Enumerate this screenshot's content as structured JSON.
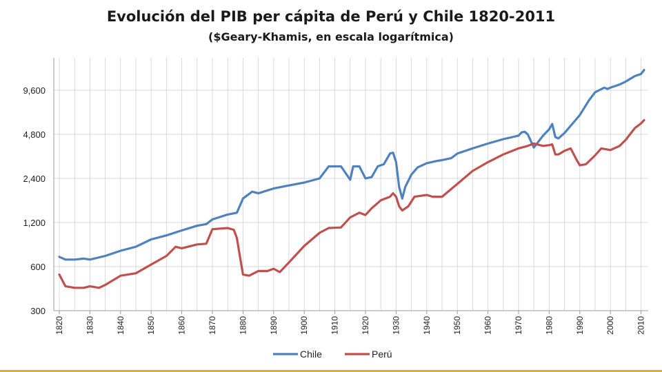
{
  "chart_data": {
    "type": "line",
    "title": "Evolución del PIB per cápita de Perú y Chile 1820-2011",
    "subtitle": "($Geary-Khamis, en escala logarítmica)",
    "xlabel": "",
    "ylabel": "",
    "y_scale": "log",
    "ylim": [
      300,
      15000
    ],
    "xlim": [
      1820,
      2011
    ],
    "y_ticks": [
      300,
      600,
      1200,
      2400,
      4800,
      9600
    ],
    "y_tick_labels": [
      "300",
      "600",
      "1,200",
      "2,400",
      "4,800",
      "9,600"
    ],
    "x_ticks": [
      1820,
      1830,
      1840,
      1850,
      1860,
      1870,
      1880,
      1890,
      1900,
      1910,
      1920,
      1930,
      1940,
      1950,
      1960,
      1970,
      1980,
      1990,
      2000,
      2010
    ],
    "x_tick_labels": [
      "1820",
      "1830",
      "1840",
      "1850",
      "1860",
      "1870",
      "1880",
      "1890",
      "1900",
      "1910",
      "1920",
      "1930",
      "1940",
      "1950",
      "1960",
      "1970",
      "1980",
      "1990",
      "2000",
      "2010"
    ],
    "grid": true,
    "legend_position": "bottom",
    "series": [
      {
        "name": "Chile",
        "color": "#4f81bd",
        "x": [
          1820,
          1822,
          1825,
          1828,
          1830,
          1835,
          1840,
          1845,
          1850,
          1855,
          1860,
          1865,
          1868,
          1870,
          1875,
          1878,
          1880,
          1883,
          1885,
          1890,
          1895,
          1900,
          1905,
          1908,
          1912,
          1915,
          1916,
          1918,
          1920,
          1922,
          1924,
          1926,
          1928,
          1929,
          1930,
          1931,
          1932,
          1933,
          1935,
          1937,
          1940,
          1943,
          1945,
          1948,
          1950,
          1955,
          1960,
          1965,
          1970,
          1971,
          1972,
          1973,
          1975,
          1978,
          1980,
          1981,
          1982,
          1983,
          1985,
          1988,
          1990,
          1993,
          1995,
          1998,
          1999,
          2000,
          2003,
          2005,
          2008,
          2009,
          2010,
          2011
        ],
        "y": [
          700,
          670,
          670,
          680,
          670,
          710,
          770,
          820,
          920,
          980,
          1060,
          1140,
          1170,
          1260,
          1360,
          1400,
          1750,
          1950,
          1900,
          2050,
          2150,
          2250,
          2400,
          2900,
          2900,
          2350,
          2900,
          2900,
          2400,
          2450,
          2900,
          3000,
          3550,
          3600,
          3100,
          2100,
          1750,
          2100,
          2550,
          2850,
          3050,
          3150,
          3200,
          3300,
          3550,
          3850,
          4150,
          4450,
          4700,
          4950,
          5000,
          4800,
          3900,
          4700,
          5200,
          5650,
          4600,
          4500,
          4900,
          5800,
          6500,
          8200,
          9300,
          10000,
          9800,
          10000,
          10500,
          11000,
          12000,
          12200,
          12400,
          13200
        ]
      },
      {
        "name": "Perú",
        "color": "#c0504d",
        "x": [
          1820,
          1822,
          1825,
          1828,
          1830,
          1833,
          1835,
          1840,
          1845,
          1850,
          1855,
          1858,
          1860,
          1865,
          1868,
          1870,
          1875,
          1877,
          1878,
          1879,
          1880,
          1882,
          1885,
          1888,
          1890,
          1892,
          1895,
          1900,
          1905,
          1908,
          1912,
          1915,
          1918,
          1920,
          1922,
          1925,
          1928,
          1929,
          1930,
          1931,
          1932,
          1934,
          1936,
          1940,
          1942,
          1945,
          1950,
          1955,
          1960,
          1965,
          1970,
          1973,
          1975,
          1978,
          1980,
          1981,
          1982,
          1983,
          1985,
          1987,
          1989,
          1990,
          1992,
          1995,
          1997,
          2000,
          2003,
          2005,
          2008,
          2010,
          2011
        ],
        "y": [
          530,
          440,
          430,
          430,
          440,
          430,
          450,
          520,
          540,
          620,
          710,
          820,
          800,
          850,
          860,
          1080,
          1100,
          1070,
          940,
          700,
          530,
          520,
          560,
          560,
          580,
          550,
          640,
          830,
          1020,
          1100,
          1110,
          1300,
          1400,
          1350,
          1500,
          1700,
          1800,
          1900,
          1800,
          1550,
          1450,
          1550,
          1800,
          1850,
          1800,
          1800,
          2200,
          2700,
          3100,
          3500,
          3850,
          4000,
          4150,
          4000,
          4050,
          4100,
          3500,
          3500,
          3700,
          3850,
          3200,
          2950,
          3000,
          3450,
          3850,
          3750,
          4000,
          4400,
          5300,
          5700,
          6000
        ]
      }
    ]
  }
}
